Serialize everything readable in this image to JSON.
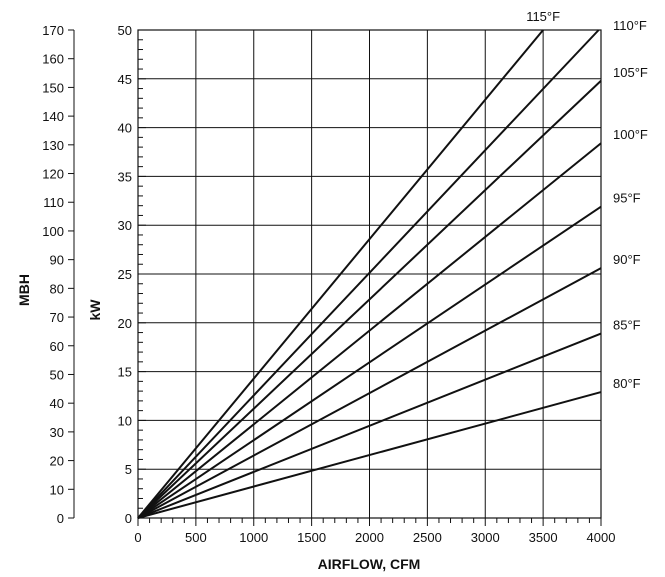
{
  "chart_data": {
    "type": "line",
    "xlabel": "AIRFLOW, CFM",
    "ylabel_left": "MBH",
    "ylabel_inner": "kW",
    "x_ticks": [
      "0",
      "500",
      "1000",
      "1500",
      "2000",
      "2500",
      "3000",
      "3500",
      "4000"
    ],
    "kw_ticks": [
      "0",
      "5",
      "10",
      "15",
      "20",
      "25",
      "30",
      "35",
      "40",
      "45",
      "50"
    ],
    "mbh_ticks": [
      "0",
      "10",
      "20",
      "30",
      "40",
      "50",
      "60",
      "70",
      "80",
      "90",
      "100",
      "110",
      "120",
      "130",
      "140",
      "150",
      "160",
      "170"
    ],
    "xlim": [
      0,
      4000
    ],
    "ylim_kw": [
      0,
      50
    ],
    "ylim_mbh": [
      0,
      170
    ],
    "grid": true,
    "series": [
      {
        "name": "80°F",
        "x": [
          0,
          4000
        ],
        "y_kw": [
          0,
          12.9
        ]
      },
      {
        "name": "85°F",
        "x": [
          0,
          4000
        ],
        "y_kw": [
          0,
          18.9
        ]
      },
      {
        "name": "90°F",
        "x": [
          0,
          4000
        ],
        "y_kw": [
          0,
          25.6
        ]
      },
      {
        "name": "95°F",
        "x": [
          0,
          4000
        ],
        "y_kw": [
          0,
          31.9
        ]
      },
      {
        "name": "100°F",
        "x": [
          0,
          4000
        ],
        "y_kw": [
          0,
          38.4
        ]
      },
      {
        "name": "105°F",
        "x": [
          0,
          4000
        ],
        "y_kw": [
          0,
          44.8
        ]
      },
      {
        "name": "110°F",
        "x": [
          0,
          3980
        ],
        "y_kw": [
          0,
          50
        ]
      },
      {
        "name": "115°F",
        "x": [
          0,
          3500
        ],
        "y_kw": [
          0,
          50
        ]
      }
    ]
  }
}
